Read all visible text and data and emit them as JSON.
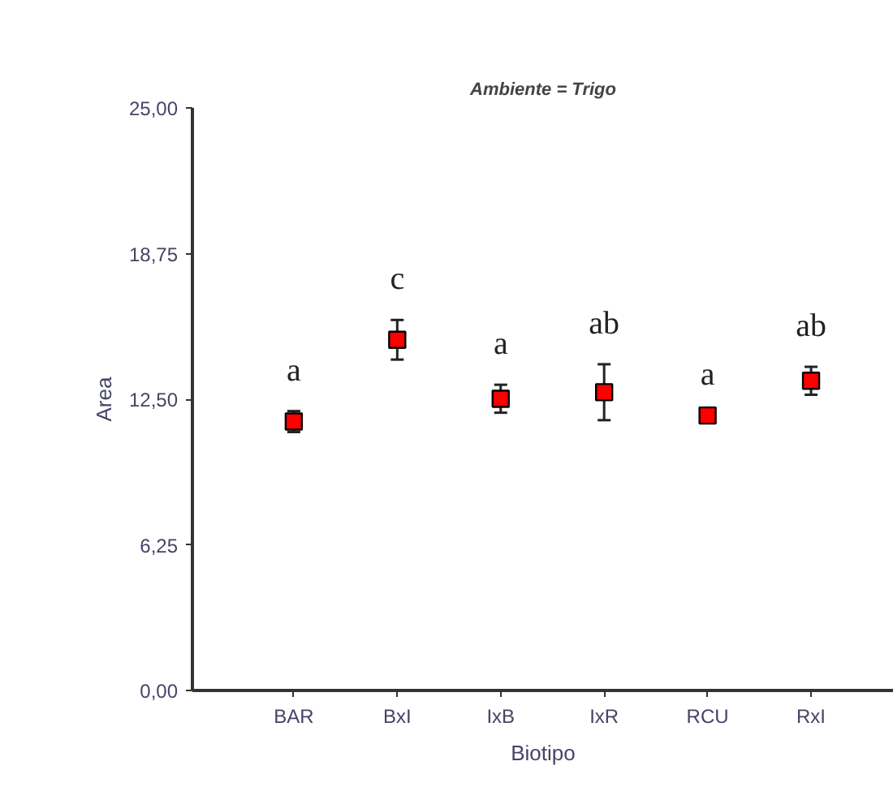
{
  "chart_data": {
    "type": "scatter",
    "title": "Ambiente = Trigo",
    "xlabel": "Biotipo",
    "ylabel": "Area",
    "categories": [
      "BAR",
      "BxI",
      "IxB",
      "IxR",
      "RCU",
      "RxI"
    ],
    "values": [
      11.54,
      15.05,
      12.52,
      12.8,
      11.8,
      13.29
    ],
    "errors": [
      0.45,
      0.85,
      0.6,
      1.2,
      null,
      0.6
    ],
    "color": "#ff0000",
    "marker": "square",
    "grid": false,
    "ylim": [
      0,
      25
    ],
    "yticks": [
      {
        "value": 0,
        "label": "0,00"
      },
      {
        "value": 6.25,
        "label": "6,25"
      },
      {
        "value": 12.5,
        "label": "12,50"
      },
      {
        "value": 18.75,
        "label": "18,75"
      },
      {
        "value": 25,
        "label": "25,00"
      }
    ],
    "annotations": [
      "a",
      "c",
      "a",
      "ab",
      "a",
      "ab"
    ]
  }
}
